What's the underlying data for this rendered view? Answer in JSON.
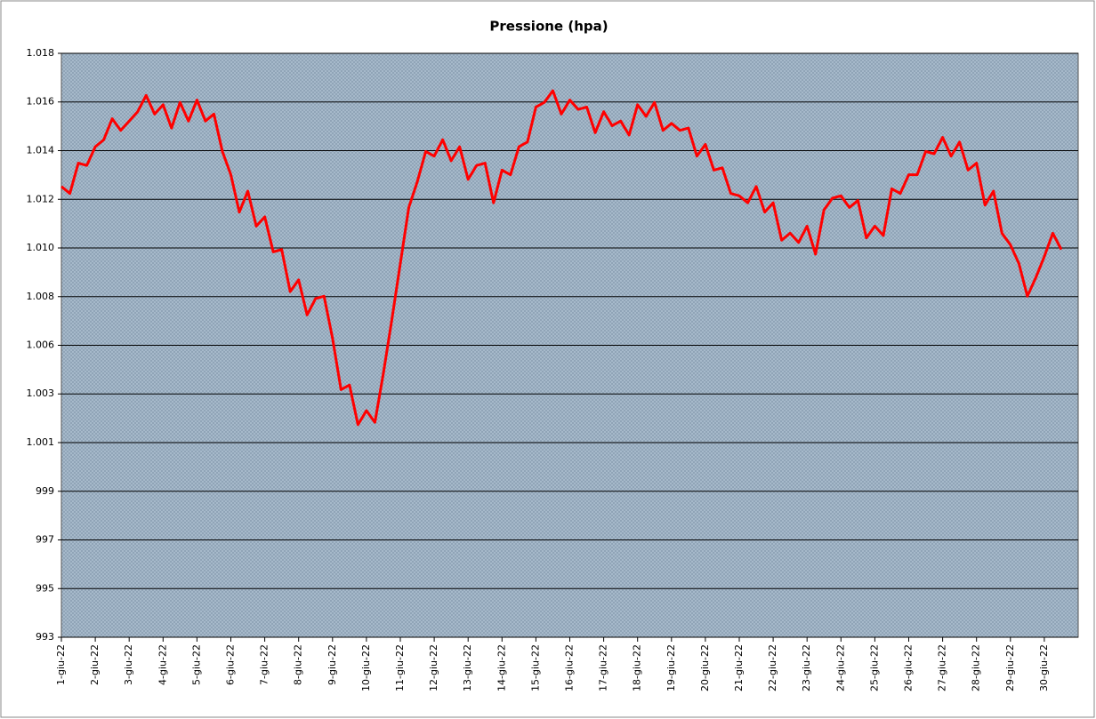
{
  "chart_data": {
    "type": "line",
    "title": "Pressione (hpa)",
    "categories": [
      "1-giu-22",
      null,
      null,
      null,
      "2-giu-22",
      null,
      null,
      null,
      "3-giu-22",
      null,
      null,
      null,
      "4-giu-22",
      null,
      null,
      null,
      "5-giu-22",
      null,
      null,
      null,
      "6-giu-22",
      null,
      null,
      null,
      "7-giu-22",
      null,
      null,
      null,
      "8-giu-22",
      null,
      null,
      null,
      "9-giu-22",
      null,
      null,
      null,
      "10-giu-22",
      null,
      null,
      null,
      "11-giu-22",
      null,
      null,
      null,
      "12-giu-22",
      null,
      null,
      null,
      "13-giu-22",
      null,
      null,
      null,
      "14-giu-22",
      null,
      null,
      null,
      "15-giu-22",
      null,
      null,
      null,
      "16-giu-22",
      null,
      null,
      null,
      "17-giu-22",
      null,
      null,
      null,
      "18-giu-22",
      null,
      null,
      null,
      "19-giu-22",
      null,
      null,
      null,
      "20-giu-22",
      null,
      null,
      null,
      "21-giu-22",
      null,
      null,
      null,
      "22-giu-22",
      null,
      null,
      null,
      "23-giu-22",
      null,
      null,
      null,
      "24-giu-22",
      null,
      null,
      null,
      "25-giu-22",
      null,
      null,
      null,
      "26-giu-22",
      null,
      null,
      null,
      "27-giu-22",
      null,
      null,
      null,
      "28-giu-22",
      null,
      null,
      null,
      "29-giu-22",
      null,
      null,
      null,
      "30-giu-22",
      null,
      null,
      null
    ],
    "values": [
      1012.3,
      1012.0,
      1013.3,
      1013.2,
      1014.0,
      1014.3,
      1015.2,
      1014.7,
      1015.1,
      1015.5,
      1016.2,
      1015.4,
      1015.8,
      1014.8,
      1015.9,
      1015.1,
      1016.0,
      1015.1,
      1015.4,
      1013.8,
      1012.8,
      1011.2,
      1012.1,
      1010.6,
      1011.0,
      1009.5,
      1009.6,
      1007.8,
      1008.3,
      1006.8,
      1007.5,
      1007.6,
      1005.8,
      1003.6,
      1003.8,
      1002.1,
      1002.7,
      1002.2,
      1004.3,
      1006.6,
      1009.0,
      1011.4,
      1012.5,
      1013.8,
      1013.6,
      1014.3,
      1013.4,
      1014.0,
      1012.6,
      1013.2,
      1013.3,
      1011.6,
      1013.0,
      1012.8,
      1014.0,
      1014.2,
      1015.7,
      1015.9,
      1016.4,
      1015.4,
      1016.0,
      1015.6,
      1015.7,
      1014.6,
      1015.5,
      1014.9,
      1015.1,
      1014.5,
      1015.8,
      1015.3,
      1015.9,
      1014.7,
      1015.0,
      1014.7,
      1014.8,
      1013.6,
      1014.1,
      1013.0,
      1013.1,
      1012.0,
      1011.9,
      1011.6,
      1012.3,
      1011.2,
      1011.6,
      1010.0,
      1010.3,
      1009.9,
      1010.6,
      1009.4,
      1011.3,
      1011.8,
      1011.9,
      1011.4,
      1011.7,
      1010.1,
      1010.6,
      1010.2,
      1012.2,
      1012.0,
      1012.8,
      1012.8,
      1013.8,
      1013.7,
      1014.4,
      1013.6,
      1014.2,
      1013.0,
      1013.3,
      1011.5,
      1012.1,
      1010.3,
      1009.8,
      1009.0,
      1007.6,
      1008.4,
      1009.3,
      1010.3,
      1009.6,
      null
    ],
    "color": "#ff0000",
    "ylim": [
      993,
      1018
    ],
    "yticks": [
      993,
      {
        "value": 995.083,
        "label": "995"
      },
      {
        "value": 997.167,
        "label": "997"
      },
      {
        "value": 999.25,
        "label": "999"
      },
      {
        "value": 1001.333,
        "label": "1.001"
      },
      {
        "value": 1003.417,
        "label": "1.003"
      },
      {
        "value": 1005.5,
        "label": "1.006"
      },
      {
        "value": 1007.583,
        "label": "1.008"
      },
      {
        "value": 1009.667,
        "label": "1.010"
      },
      {
        "value": 1011.75,
        "label": "1.012"
      },
      {
        "value": 1013.833,
        "label": "1.014"
      },
      {
        "value": 1015.917,
        "label": "1.016"
      },
      {
        "value": 1018,
        "label": "1.018"
      }
    ],
    "grid": true
  }
}
